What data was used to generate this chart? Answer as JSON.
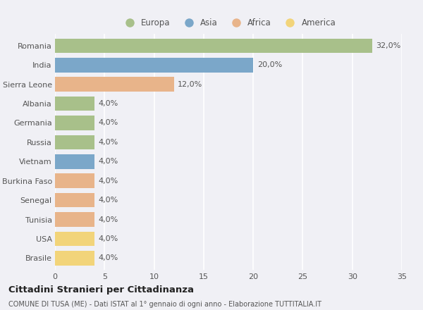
{
  "countries": [
    "Romania",
    "India",
    "Sierra Leone",
    "Albania",
    "Germania",
    "Russia",
    "Vietnam",
    "Burkina Faso",
    "Senegal",
    "Tunisia",
    "USA",
    "Brasile"
  ],
  "values": [
    32.0,
    20.0,
    12.0,
    4.0,
    4.0,
    4.0,
    4.0,
    4.0,
    4.0,
    4.0,
    4.0,
    4.0
  ],
  "labels": [
    "32,0%",
    "20,0%",
    "12,0%",
    "4,0%",
    "4,0%",
    "4,0%",
    "4,0%",
    "4,0%",
    "4,0%",
    "4,0%",
    "4,0%",
    "4,0%"
  ],
  "categories": [
    "Europa",
    "Asia",
    "Africa",
    "Europa",
    "Europa",
    "Europa",
    "Asia",
    "Africa",
    "Africa",
    "Africa",
    "America",
    "America"
  ],
  "colors": {
    "Europa": "#a8c08a",
    "Asia": "#7ba7c9",
    "Africa": "#e8b48a",
    "America": "#f2d47a"
  },
  "xlim": [
    0,
    35
  ],
  "xticks": [
    0,
    5,
    10,
    15,
    20,
    25,
    30,
    35
  ],
  "title1": "Cittadini Stranieri per Cittadinanza",
  "title2": "COMUNE DI TUSA (ME) - Dati ISTAT al 1° gennaio di ogni anno - Elaborazione TUTTITALIA.IT",
  "background_color": "#f0f0f5",
  "grid_color": "#ffffff",
  "legend_order": [
    "Europa",
    "Asia",
    "Africa",
    "America"
  ]
}
